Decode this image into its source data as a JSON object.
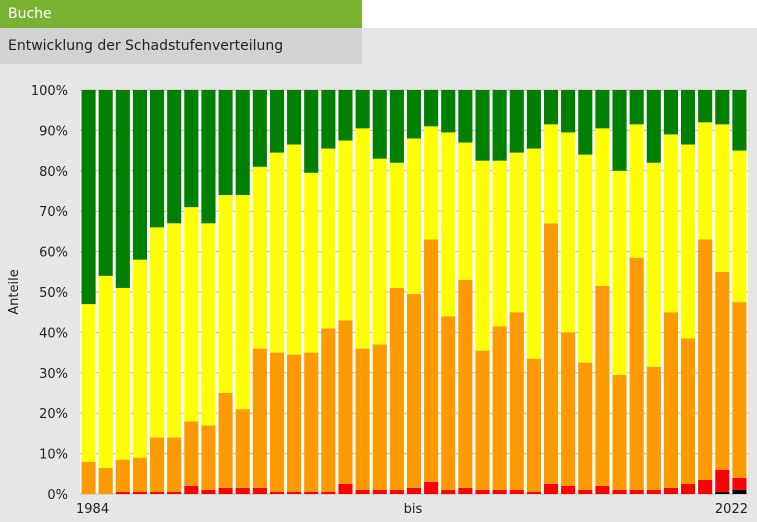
{
  "header": {
    "tab_label": "Buche",
    "subtitle": "Entwicklung der Schadstufenverteilung"
  },
  "chart_data": {
    "type": "bar",
    "stacked": true,
    "ylabel": "Anteile",
    "ylim": [
      0,
      100
    ],
    "yticks": [
      "0%",
      "10%",
      "20%",
      "30%",
      "40%",
      "50%",
      "60%",
      "70%",
      "80%",
      "90%",
      "100%"
    ],
    "x_labels": [
      "1984",
      "bis",
      "2022"
    ],
    "colors": {
      "black": "#000000",
      "red": "#ff0000",
      "orange": "#ff9900",
      "yellow": "#ffff00",
      "green": "#007f00"
    },
    "cumulative": [
      [
        0,
        0,
        8,
        47
      ],
      [
        0,
        0,
        6.5,
        54
      ],
      [
        0,
        0.5,
        8.5,
        51
      ],
      [
        0,
        0.5,
        9,
        58
      ],
      [
        0,
        0.5,
        14,
        66
      ],
      [
        0,
        0.5,
        14,
        67
      ],
      [
        0,
        2,
        18,
        71
      ],
      [
        0,
        1,
        17,
        67
      ],
      [
        0,
        1.5,
        25,
        74
      ],
      [
        0,
        1.5,
        21,
        74
      ],
      [
        0,
        1.5,
        36,
        81
      ],
      [
        0,
        0.5,
        35,
        84.5
      ],
      [
        0,
        0.5,
        34.5,
        86.5
      ],
      [
        0,
        0.5,
        35,
        79.5
      ],
      [
        0,
        0.5,
        41,
        85.5
      ],
      [
        0,
        2.5,
        43,
        87.5
      ],
      [
        0,
        1,
        36,
        90.5
      ],
      [
        0,
        1,
        37,
        83
      ],
      [
        0,
        1,
        51,
        82
      ],
      [
        0,
        1.5,
        49.5,
        88
      ],
      [
        0,
        3,
        63,
        91
      ],
      [
        0,
        1,
        44,
        89.5
      ],
      [
        0,
        1.5,
        53,
        87
      ],
      [
        0,
        1,
        35.5,
        82.5
      ],
      [
        0,
        1,
        41.5,
        82.5
      ],
      [
        0,
        1,
        45,
        84.5
      ],
      [
        0,
        0.5,
        33.5,
        85.5
      ],
      [
        0,
        2.5,
        67,
        91.5
      ],
      [
        0,
        2,
        40,
        89.5
      ],
      [
        0,
        1,
        32.5,
        84
      ],
      [
        0,
        2,
        51.5,
        90.5
      ],
      [
        0,
        1,
        29.5,
        80
      ],
      [
        0,
        1,
        58.5,
        91.5
      ],
      [
        0,
        1,
        31.5,
        82
      ],
      [
        0,
        1.5,
        45,
        89
      ],
      [
        0,
        2.5,
        38.5,
        86.5
      ],
      [
        0,
        3.5,
        63,
        92
      ],
      [
        0.5,
        6,
        55,
        91.5
      ],
      [
        1,
        4,
        47.5,
        85
      ]
    ]
  }
}
